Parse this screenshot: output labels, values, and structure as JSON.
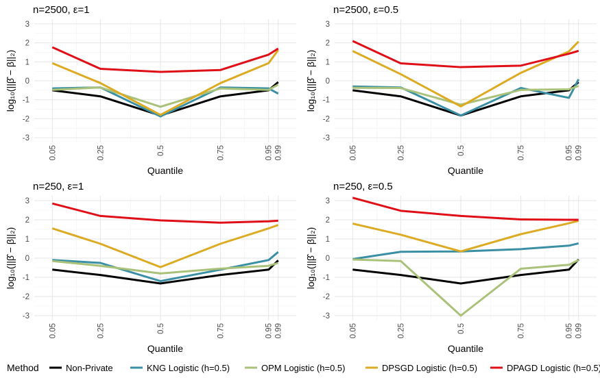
{
  "chart_data": {
    "type": "line",
    "x_ticks": [
      0.05,
      0.25,
      0.5,
      0.75,
      0.95,
      0.99
    ],
    "x_tick_labels": [
      "0.05",
      "0.25",
      "0.5",
      "0.75",
      "0.95",
      "0.99"
    ],
    "y_ticks": [
      -3,
      -2,
      -1,
      0,
      1,
      2,
      3
    ],
    "ylim": [
      -3,
      3
    ],
    "xlabel": "Quantile",
    "ylabel": "log₁₀(||β̂ − β||₂)",
    "legend": {
      "title": "Method",
      "position": "bottom",
      "items": [
        "Non-Private",
        "KNG Logistic (h=0.5)",
        "OPM Logistic (h=0.5)",
        "DPSGD Logistic (h=0.5)",
        "DPAGD Logistic (h=0.5)"
      ]
    },
    "colors": {
      "Non-Private": "#000000",
      "KNG Logistic (h=0.5)": "#3a8fa5",
      "OPM Logistic (h=0.5)": "#a9c179",
      "DPSGD Logistic (h=0.5)": "#dcab23",
      "DPAGD Logistic (h=0.5)": "#e00e16"
    },
    "grid": true,
    "panels": [
      {
        "title": "n=2500, ε=1",
        "x": [
          0.05,
          0.25,
          0.5,
          0.75,
          0.95,
          0.99
        ],
        "series": [
          {
            "name": "Non-Private",
            "values": [
              -0.5,
              -0.82,
              -1.83,
              -0.82,
              -0.5,
              -0.07
            ]
          },
          {
            "name": "KNG Logistic (h=0.5)",
            "values": [
              -0.4,
              -0.35,
              -1.88,
              -0.35,
              -0.4,
              -0.68
            ]
          },
          {
            "name": "OPM Logistic (h=0.5)",
            "values": [
              -0.48,
              -0.35,
              -1.37,
              -0.4,
              -0.48,
              -0.2
            ]
          },
          {
            "name": "DPSGD Logistic (h=0.5)",
            "values": [
              0.93,
              -0.12,
              -1.8,
              -0.12,
              0.93,
              1.62
            ]
          },
          {
            "name": "DPAGD Logistic (h=0.5)",
            "values": [
              1.77,
              0.63,
              0.47,
              0.57,
              1.38,
              1.7
            ]
          }
        ]
      },
      {
        "title": "n=2500, ε=0.5",
        "x": [
          0.05,
          0.25,
          0.5,
          0.75,
          0.95,
          0.99
        ],
        "series": [
          {
            "name": "Non-Private",
            "values": [
              -0.5,
              -0.82,
              -1.83,
              -0.82,
              -0.5,
              -0.07
            ]
          },
          {
            "name": "KNG Logistic (h=0.5)",
            "values": [
              -0.3,
              -0.35,
              -1.83,
              -0.38,
              -0.9,
              0.08
            ]
          },
          {
            "name": "OPM Logistic (h=0.5)",
            "values": [
              -0.37,
              -0.38,
              -1.26,
              -0.48,
              -0.45,
              -0.27
            ]
          },
          {
            "name": "DPSGD Logistic (h=0.5)",
            "values": [
              1.57,
              0.35,
              -1.35,
              0.42,
              1.55,
              2.07
            ]
          },
          {
            "name": "DPAGD Logistic (h=0.5)",
            "values": [
              2.1,
              0.92,
              0.72,
              0.8,
              1.43,
              1.58
            ]
          }
        ]
      },
      {
        "title": "n=250, ε=1",
        "x": [
          0.05,
          0.25,
          0.5,
          0.75,
          0.95,
          0.99
        ],
        "series": [
          {
            "name": "Non-Private",
            "values": [
              -0.6,
              -0.88,
              -1.32,
              -0.88,
              -0.6,
              -0.12
            ]
          },
          {
            "name": "KNG Logistic (h=0.5)",
            "values": [
              -0.1,
              -0.25,
              -1.2,
              -0.6,
              -0.1,
              0.32
            ]
          },
          {
            "name": "OPM Logistic (h=0.5)",
            "values": [
              -0.15,
              -0.4,
              -0.8,
              -0.55,
              -0.4,
              -0.25
            ]
          },
          {
            "name": "DPSGD Logistic (h=0.5)",
            "values": [
              1.55,
              0.75,
              -0.47,
              0.75,
              1.55,
              1.73
            ]
          },
          {
            "name": "DPAGD Logistic (h=0.5)",
            "values": [
              2.85,
              2.2,
              1.97,
              1.85,
              1.92,
              1.95
            ]
          }
        ]
      },
      {
        "title": "n=250, ε=0.5",
        "x": [
          0.05,
          0.25,
          0.5,
          0.75,
          0.95,
          0.99
        ],
        "series": [
          {
            "name": "Non-Private",
            "values": [
              -0.6,
              -0.88,
              -1.32,
              -0.88,
              -0.6,
              -0.07
            ]
          },
          {
            "name": "KNG Logistic (h=0.5)",
            "values": [
              -0.05,
              0.33,
              0.35,
              0.47,
              0.65,
              0.77
            ]
          },
          {
            "name": "OPM Logistic (h=0.5)",
            "values": [
              -0.07,
              -0.15,
              -3.0,
              -0.55,
              -0.35,
              -0.1
            ]
          },
          {
            "name": "DPSGD Logistic (h=0.5)",
            "values": [
              1.8,
              1.22,
              0.35,
              1.25,
              1.82,
              1.95
            ]
          },
          {
            "name": "DPAGD Logistic (h=0.5)",
            "values": [
              3.15,
              2.47,
              2.2,
              2.02,
              2.0,
              2.0
            ]
          }
        ]
      }
    ]
  }
}
